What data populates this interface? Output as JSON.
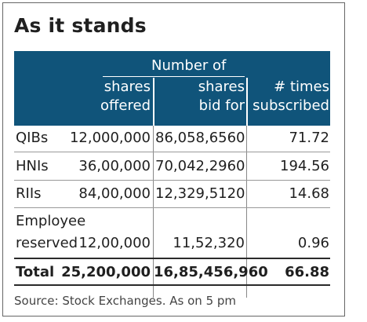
{
  "title": "As it stands",
  "header": {
    "group_label": "Number of",
    "col_offered_line1": "shares",
    "col_offered_line2": "offered",
    "col_bid_line1": "shares",
    "col_bid_line2": "bid for",
    "col_times_line1": "# times",
    "col_times_line2": "subscribed"
  },
  "rows": [
    {
      "label": "QIBs",
      "offered": "12,000,000",
      "bid": "86,058,6560",
      "times": "71.72"
    },
    {
      "label": "HNIs",
      "offered": "36,00,000",
      "bid": "70,042,2960",
      "times": "194.56"
    },
    {
      "label": "RIIs",
      "offered": "84,00,000",
      "bid": "12,329,5120",
      "times": "14.68"
    },
    {
      "label_line1": "Employee",
      "label_line2": "reserved",
      "offered": "12,00,000",
      "bid": "11,52,320",
      "times": "0.96"
    }
  ],
  "total": {
    "label": "Total",
    "offered": "25,200,000",
    "bid": "16,85,456,960",
    "times": "66.88"
  },
  "source": "Source: Stock Exchanges. As on 5 pm",
  "colors": {
    "header_bg": "#10547a",
    "header_text": "#ffffff",
    "text": "#1f1f1f"
  }
}
